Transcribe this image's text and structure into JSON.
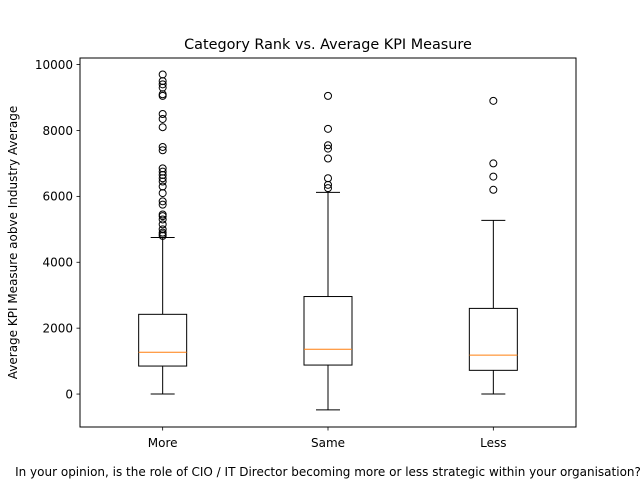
{
  "chart_data": {
    "type": "box",
    "title": "Category Rank vs. Average KPI Measure",
    "xlabel": "In your opinion, is the role of CIO / IT Director becoming more or less strategic within your organisation?",
    "ylabel": "Average KPI Measure aobve Industry Average",
    "categories": [
      "More",
      "Same",
      "Less"
    ],
    "ylim": [
      -1000,
      10200
    ],
    "yticks": [
      0,
      2000,
      4000,
      6000,
      8000,
      10000
    ],
    "grid": false,
    "colors": {
      "box": "#000000",
      "median": "#ff7f0e",
      "whisker": "#000000",
      "flier": "#000000"
    },
    "boxes": [
      {
        "category": "More",
        "whisker_low": 0,
        "q1": 850,
        "median": 1270,
        "q3": 2420,
        "whisker_high": 4750,
        "outliers": [
          4800,
          4850,
          4900,
          5000,
          5150,
          5300,
          5400,
          5450,
          5750,
          5850,
          6100,
          6300,
          6450,
          6550,
          6650,
          6750,
          6850,
          7400,
          7500,
          8100,
          8350,
          8500,
          9050,
          9100,
          9300,
          9400,
          9500,
          9700
        ]
      },
      {
        "category": "Same",
        "whisker_low": -480,
        "q1": 880,
        "median": 1360,
        "q3": 2960,
        "whisker_high": 6120,
        "outliers": [
          6250,
          6350,
          6550,
          7150,
          7450,
          7550,
          8050,
          9050
        ]
      },
      {
        "category": "Less",
        "whisker_low": 0,
        "q1": 720,
        "median": 1180,
        "q3": 2600,
        "whisker_high": 5270,
        "outliers": [
          6200,
          6600,
          7000,
          8900
        ]
      }
    ]
  }
}
